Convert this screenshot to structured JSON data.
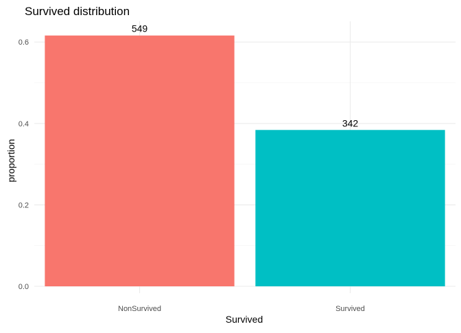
{
  "chart_data": {
    "type": "bar",
    "title": "Survived distribution",
    "xlabel": "Survived",
    "ylabel": "proportion",
    "categories": [
      "NonSurvived",
      "Survived"
    ],
    "values": [
      0.616,
      0.384
    ],
    "data_labels": [
      "549",
      "342"
    ],
    "colors": [
      "#F8766D",
      "#00BFC4"
    ],
    "ylim": [
      0,
      0.645
    ],
    "yticks": [
      0.0,
      0.2,
      0.4,
      0.6
    ],
    "ytick_labels": [
      "0.0",
      "0.2",
      "0.4",
      "0.6"
    ],
    "grid": true,
    "legend": "none"
  }
}
